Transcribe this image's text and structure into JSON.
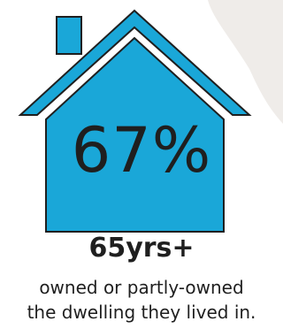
{
  "stat": {
    "percent": "67%",
    "age_group": "65yrs+",
    "caption_line1": "owned or partly-owned",
    "caption_line2": "the dwelling they lived in."
  },
  "colors": {
    "house_fill": "#1aa7d8",
    "house_stroke": "#1f1f1f",
    "background_shape": "#efece9",
    "text": "#1f1f1f"
  },
  "icons": [
    "house-icon"
  ]
}
